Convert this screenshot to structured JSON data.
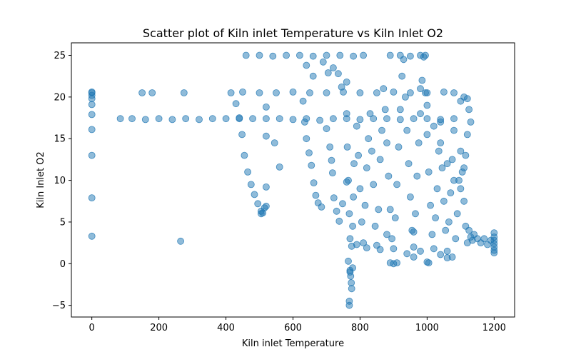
{
  "chart_data": {
    "type": "scatter",
    "title": "Scatter plot of Kiln inlet Temperature vs Kiln Inlet O2",
    "xlabel": "Kiln inlet Temperature",
    "ylabel": "Kiln Inlet O2",
    "xlim": [
      -61,
      1261
    ],
    "ylim": [
      -6.4,
      26.5
    ],
    "xticks": [
      0,
      200,
      400,
      600,
      800,
      1000,
      1200
    ],
    "yticks": [
      -5,
      0,
      5,
      10,
      15,
      20,
      25
    ],
    "marker_color": "#1f77b4",
    "marker_alpha": 0.5,
    "grid": false,
    "series": [
      {
        "points": [
          [
            0,
            20.5
          ],
          [
            0,
            20.2
          ],
          [
            0,
            19.8
          ],
          [
            0,
            19.1
          ],
          [
            0,
            17.9
          ],
          [
            0,
            16.1
          ],
          [
            0,
            13.0
          ],
          [
            0,
            7.9
          ],
          [
            0,
            3.3
          ],
          [
            0,
            20.6
          ],
          [
            150,
            20.5
          ],
          [
            180,
            20.5
          ],
          [
            275,
            20.5
          ],
          [
            265,
            2.7
          ],
          [
            85,
            17.4
          ],
          [
            120,
            17.4
          ],
          [
            160,
            17.3
          ],
          [
            200,
            17.4
          ],
          [
            240,
            17.3
          ],
          [
            280,
            17.4
          ],
          [
            320,
            17.3
          ],
          [
            360,
            17.4
          ],
          [
            400,
            17.4
          ],
          [
            440,
            17.4
          ],
          [
            480,
            17.4
          ],
          [
            520,
            17.4
          ],
          [
            560,
            17.4
          ],
          [
            600,
            17.3
          ],
          [
            640,
            17.4
          ],
          [
            680,
            17.2
          ],
          [
            720,
            17.4
          ],
          [
            760,
            17.4
          ],
          [
            800,
            17.3
          ],
          [
            840,
            17.4
          ],
          [
            880,
            17.4
          ],
          [
            920,
            17.3
          ],
          [
            960,
            17.4
          ],
          [
            1000,
            17.4
          ],
          [
            1040,
            17.3
          ],
          [
            1080,
            17.4
          ],
          [
            415,
            20.5
          ],
          [
            450,
            20.6
          ],
          [
            500,
            20.5
          ],
          [
            550,
            20.5
          ],
          [
            600,
            20.6
          ],
          [
            650,
            20.5
          ],
          [
            700,
            20.5
          ],
          [
            750,
            20.6
          ],
          [
            800,
            20.5
          ],
          [
            850,
            20.5
          ],
          [
            900,
            20.6
          ],
          [
            950,
            20.5
          ],
          [
            1000,
            20.5
          ],
          [
            1050,
            20.6
          ],
          [
            1080,
            20.5
          ],
          [
            460,
            25.0
          ],
          [
            500,
            25.0
          ],
          [
            540,
            24.9
          ],
          [
            580,
            25.0
          ],
          [
            620,
            25.0
          ],
          [
            660,
            24.9
          ],
          [
            700,
            25.0
          ],
          [
            740,
            25.0
          ],
          [
            780,
            24.9
          ],
          [
            810,
            25.0
          ],
          [
            890,
            25.0
          ],
          [
            920,
            25.0
          ],
          [
            950,
            24.9
          ],
          [
            980,
            25.0
          ],
          [
            995,
            25.0
          ],
          [
            430,
            19.2
          ],
          [
            440,
            17.5
          ],
          [
            448,
            15.5
          ],
          [
            455,
            13.0
          ],
          [
            465,
            11.0
          ],
          [
            475,
            9.5
          ],
          [
            485,
            8.3
          ],
          [
            495,
            7.2
          ],
          [
            505,
            6.3
          ],
          [
            510,
            6.1
          ],
          [
            515,
            6.7
          ],
          [
            520,
            6.9
          ],
          [
            505,
            6.0
          ],
          [
            520,
            18.8
          ],
          [
            520,
            15.3
          ],
          [
            520,
            9.2
          ],
          [
            545,
            14.5
          ],
          [
            560,
            11.6
          ],
          [
            630,
            19.5
          ],
          [
            635,
            17.0
          ],
          [
            640,
            15.0
          ],
          [
            648,
            13.3
          ],
          [
            655,
            11.8
          ],
          [
            662,
            9.7
          ],
          [
            668,
            8.2
          ],
          [
            675,
            7.3
          ],
          [
            685,
            6.8
          ],
          [
            640,
            23.8
          ],
          [
            660,
            22.5
          ],
          [
            690,
            24.2
          ],
          [
            705,
            22.9
          ],
          [
            720,
            23.5
          ],
          [
            735,
            22.8
          ],
          [
            745,
            21.2
          ],
          [
            760,
            21.8
          ],
          [
            700,
            16.2
          ],
          [
            710,
            14.0
          ],
          [
            715,
            12.4
          ],
          [
            718,
            10.9
          ],
          [
            722,
            7.9
          ],
          [
            730,
            6.3
          ],
          [
            738,
            5.1
          ],
          [
            748,
            7.2
          ],
          [
            760,
            9.8
          ],
          [
            765,
            0.3
          ],
          [
            770,
            -0.8
          ],
          [
            772,
            -1.5
          ],
          [
            774,
            -2.3
          ],
          [
            775,
            -3.0
          ],
          [
            768,
            -4.5
          ],
          [
            768,
            -5.0
          ],
          [
            770,
            -1.0
          ],
          [
            778,
            -0.5
          ],
          [
            760,
            18.0
          ],
          [
            762,
            14.0
          ],
          [
            765,
            10.0
          ],
          [
            768,
            6.0
          ],
          [
            770,
            3.0
          ],
          [
            775,
            2.1
          ],
          [
            778,
            4.5
          ],
          [
            780,
            8.0
          ],
          [
            782,
            12.0
          ],
          [
            790,
            16.5
          ],
          [
            795,
            13.0
          ],
          [
            800,
            9.0
          ],
          [
            805,
            5.0
          ],
          [
            810,
            2.5
          ],
          [
            815,
            7.0
          ],
          [
            820,
            11.5
          ],
          [
            825,
            15.0
          ],
          [
            830,
            18.0
          ],
          [
            835,
            13.5
          ],
          [
            840,
            9.5
          ],
          [
            845,
            4.5
          ],
          [
            850,
            2.2
          ],
          [
            855,
            6.5
          ],
          [
            860,
            12.5
          ],
          [
            865,
            16.0
          ],
          [
            870,
            21.0
          ],
          [
            875,
            18.5
          ],
          [
            880,
            14.5
          ],
          [
            885,
            10.5
          ],
          [
            890,
            6.5
          ],
          [
            895,
            3.0
          ],
          [
            900,
            1.8
          ],
          [
            905,
            5.5
          ],
          [
            910,
            9.5
          ],
          [
            915,
            14.0
          ],
          [
            920,
            18.5
          ],
          [
            925,
            22.5
          ],
          [
            930,
            24.5
          ],
          [
            935,
            20.0
          ],
          [
            940,
            16.0
          ],
          [
            945,
            12.0
          ],
          [
            950,
            8.0
          ],
          [
            955,
            4.0
          ],
          [
            960,
            2.0
          ],
          [
            965,
            6.0
          ],
          [
            970,
            10.5
          ],
          [
            975,
            14.5
          ],
          [
            980,
            18.0
          ],
          [
            985,
            22.0
          ],
          [
            990,
            24.8
          ],
          [
            995,
            20.5
          ],
          [
            1000,
            15.5
          ],
          [
            1005,
            11.0
          ],
          [
            1010,
            7.0
          ],
          [
            1015,
            3.5
          ],
          [
            1020,
            1.8
          ],
          [
            1025,
            5.5
          ],
          [
            1030,
            9.0
          ],
          [
            1035,
            13.5
          ],
          [
            1040,
            17.0
          ],
          [
            1045,
            11.5
          ],
          [
            1050,
            7.5
          ],
          [
            1055,
            4.0
          ],
          [
            1060,
            1.5
          ],
          [
            1065,
            5.0
          ],
          [
            1070,
            8.5
          ],
          [
            1075,
            12.5
          ],
          [
            1080,
            16.0
          ],
          [
            1085,
            3.0
          ],
          [
            1090,
            6.0
          ],
          [
            1095,
            10.0
          ],
          [
            1100,
            13.5
          ],
          [
            1105,
            11.0
          ],
          [
            1110,
            7.5
          ],
          [
            1115,
            4.5
          ],
          [
            1120,
            2.5
          ],
          [
            1100,
            19.5
          ],
          [
            1110,
            20.0
          ],
          [
            1120,
            19.8
          ],
          [
            1125,
            18.5
          ],
          [
            1130,
            17.0
          ],
          [
            1120,
            15.5
          ],
          [
            1115,
            13.0
          ],
          [
            1110,
            11.5
          ],
          [
            1125,
            4.0
          ],
          [
            1130,
            3.2
          ],
          [
            1135,
            2.8
          ],
          [
            1140,
            3.5
          ],
          [
            1150,
            3.0
          ],
          [
            1160,
            2.5
          ],
          [
            1170,
            3.0
          ],
          [
            1180,
            2.3
          ],
          [
            1190,
            2.8
          ],
          [
            1200,
            3.7
          ],
          [
            1200,
            3.2
          ],
          [
            1200,
            2.8
          ],
          [
            1200,
            2.4
          ],
          [
            1200,
            2.0
          ],
          [
            1200,
            1.6
          ],
          [
            1200,
            1.3
          ],
          [
            890,
            0.1
          ],
          [
            900,
            0.0
          ],
          [
            910,
            0.1
          ],
          [
            1000,
            0.2
          ],
          [
            1040,
            1.1
          ],
          [
            1060,
            0.7
          ],
          [
            1075,
            0.8
          ],
          [
            1005,
            0.1
          ],
          [
            960,
            0.8
          ],
          [
            980,
            1.5
          ],
          [
            940,
            1.2
          ],
          [
            860,
            1.7
          ],
          [
            820,
            1.9
          ],
          [
            790,
            2.3
          ],
          [
            880,
            3.5
          ],
          [
            960,
            3.8
          ],
          [
            980,
            21.0
          ],
          [
            1000,
            19.0
          ],
          [
            1020,
            16.5
          ],
          [
            1040,
            14.5
          ],
          [
            1060,
            12.0
          ],
          [
            1080,
            10.0
          ],
          [
            1100,
            9.0
          ]
        ]
      }
    ]
  }
}
